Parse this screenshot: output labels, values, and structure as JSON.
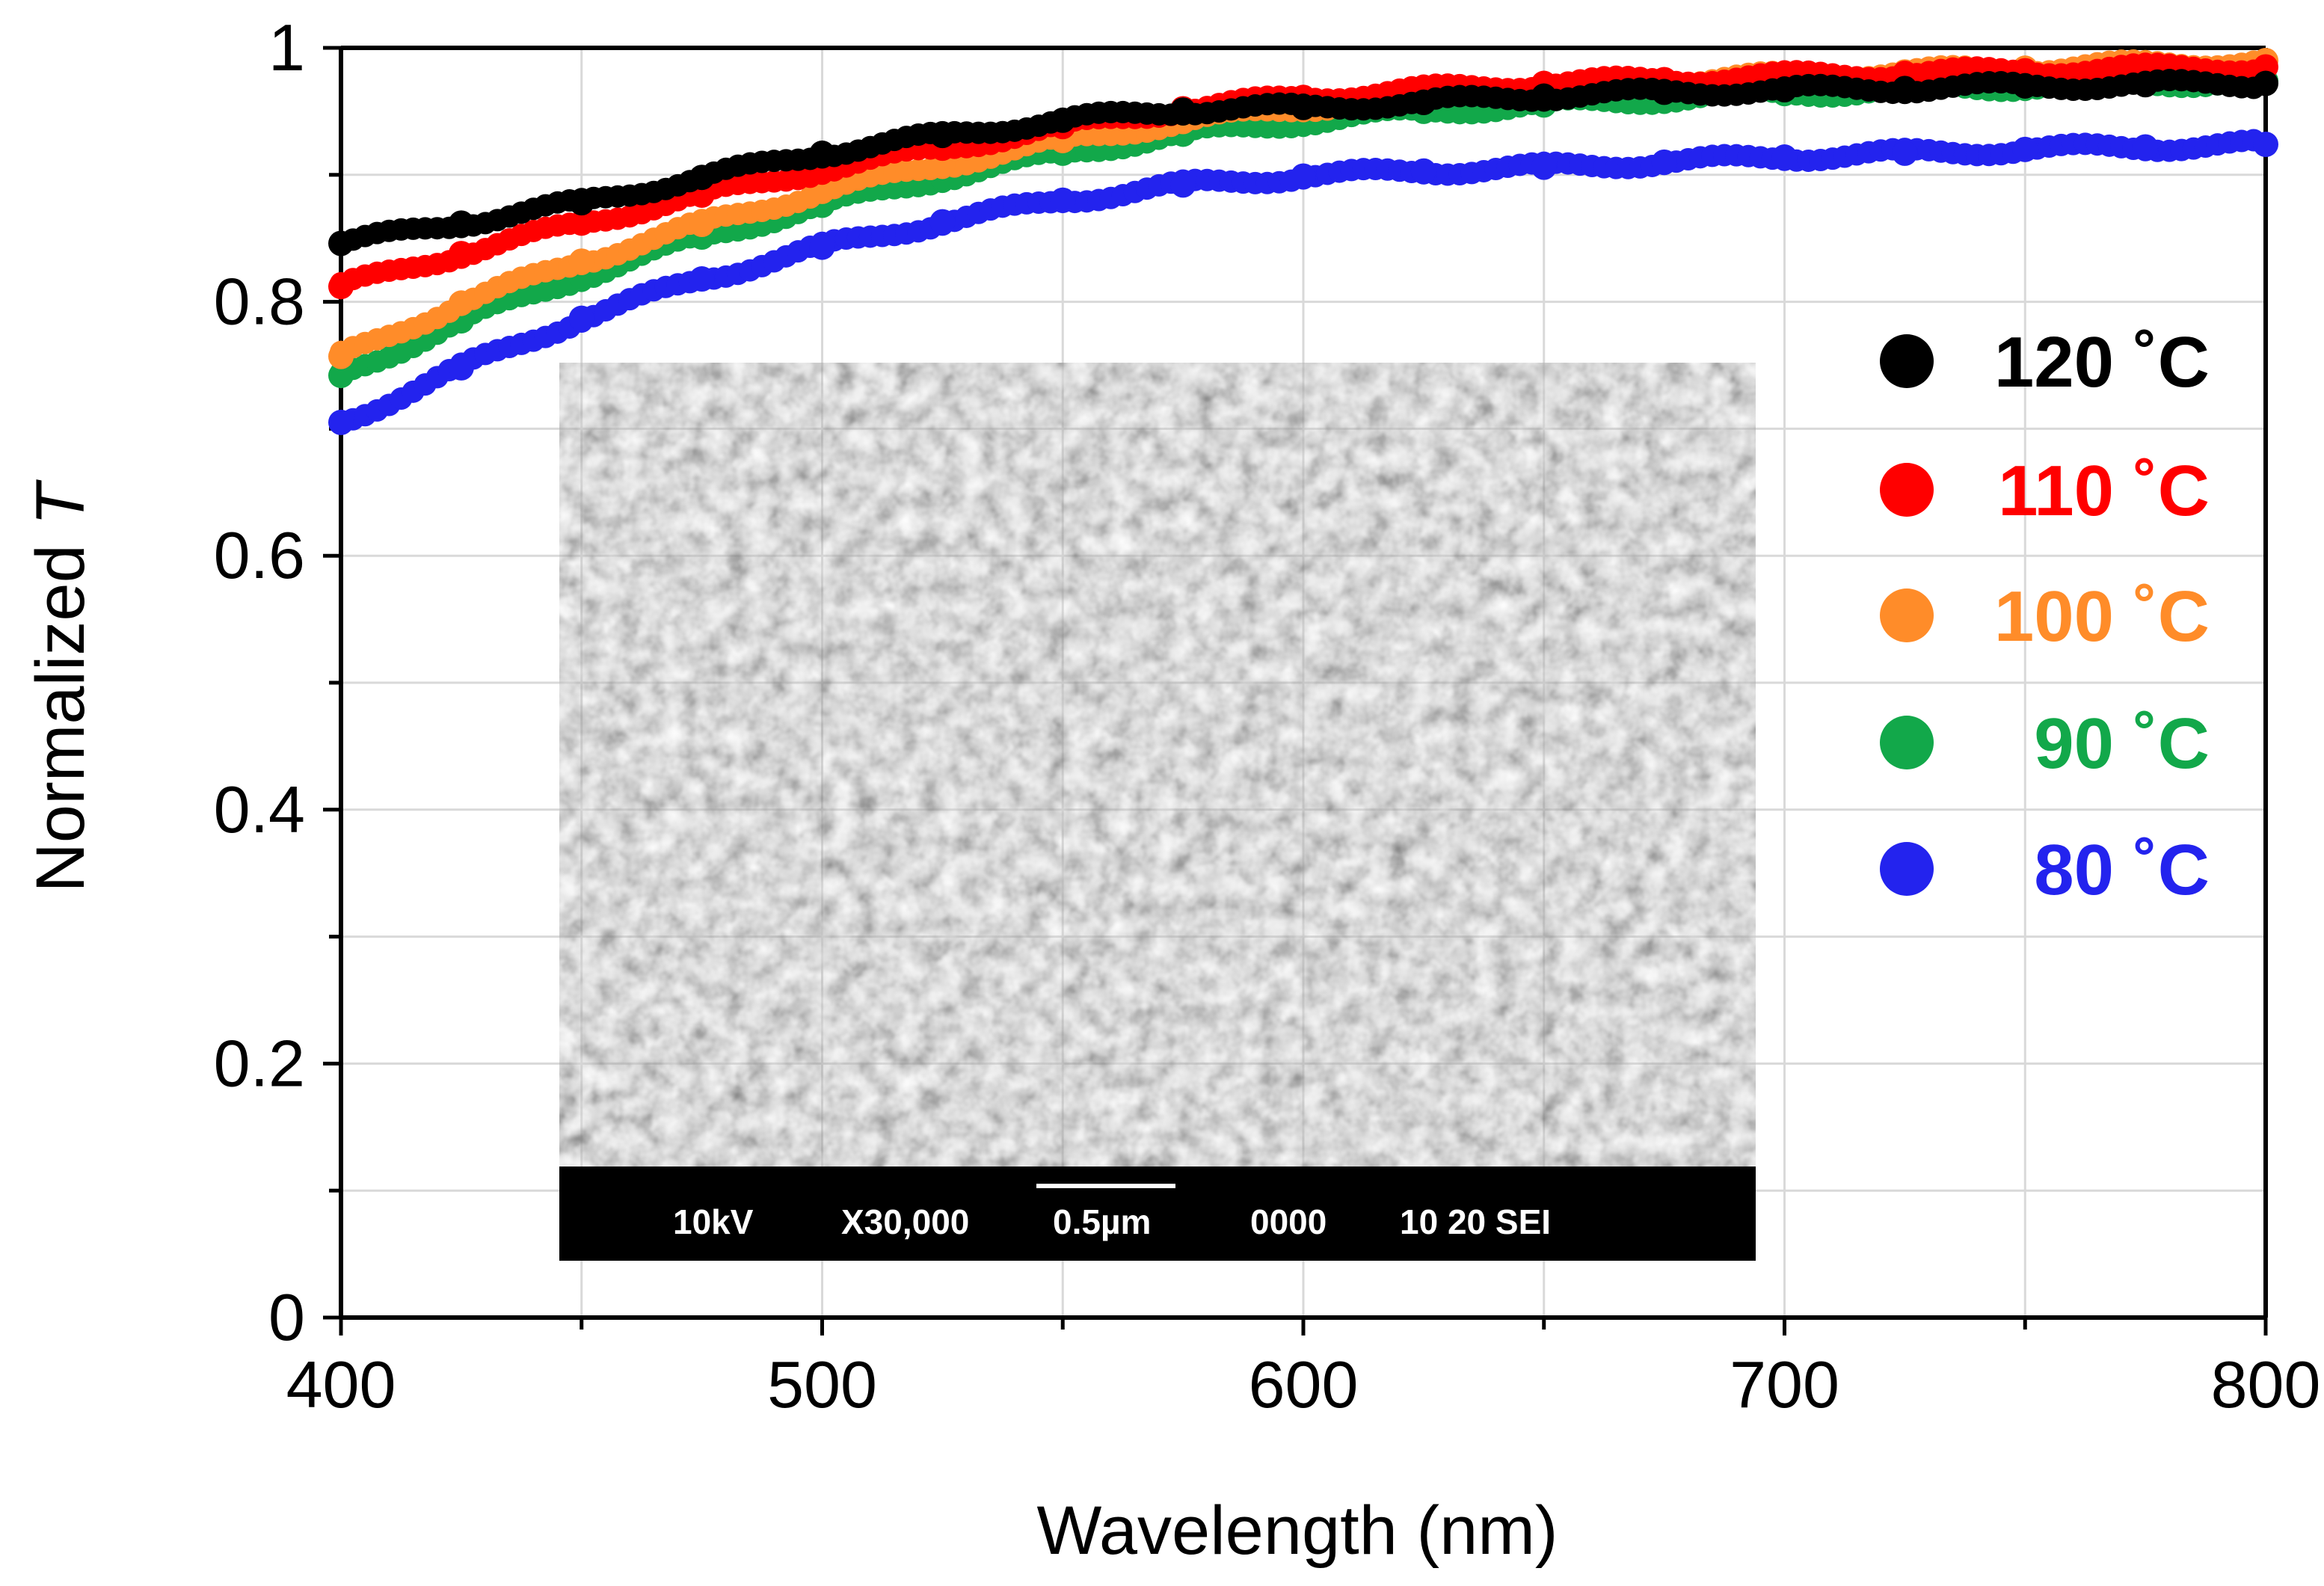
{
  "chart_data": {
    "type": "scatter",
    "title": "",
    "xlabel": "Wavelength (nm)",
    "ylabel_prefix": "Normalized ",
    "ylabel_var": "T",
    "xlim": [
      400,
      800
    ],
    "ylim": [
      0,
      1
    ],
    "xticks": [
      400,
      500,
      600,
      700,
      800
    ],
    "xtick_labels": [
      "400",
      "500",
      "600",
      "700",
      "800"
    ],
    "yticks": [
      0,
      0.2,
      0.4,
      0.6,
      0.8,
      1
    ],
    "ytick_labels": [
      "0",
      "0.2",
      "0.4",
      "0.6",
      "0.8",
      "1"
    ],
    "grid": true,
    "legend_position": "right",
    "series": [
      {
        "name": "120 ˚C",
        "color": "#000000",
        "x": [
          400,
          425,
          450,
          475,
          500,
          525,
          550,
          575,
          600,
          625,
          650,
          675,
          700,
          725,
          750,
          775,
          800
        ],
        "values": [
          0.846,
          0.862,
          0.878,
          0.898,
          0.917,
          0.931,
          0.943,
          0.951,
          0.953,
          0.957,
          0.962,
          0.965,
          0.967,
          0.968,
          0.97,
          0.971,
          0.972
        ]
      },
      {
        "name": "110 ˚C",
        "color": "#ff0000",
        "x": [
          400,
          425,
          450,
          475,
          500,
          525,
          550,
          575,
          600,
          625,
          650,
          675,
          700,
          725,
          750,
          775,
          800
        ],
        "values": [
          0.812,
          0.838,
          0.862,
          0.884,
          0.904,
          0.921,
          0.938,
          0.952,
          0.961,
          0.967,
          0.972,
          0.975,
          0.978,
          0.98,
          0.982,
          0.984,
          0.985
        ]
      },
      {
        "name": "100 ˚C",
        "color": "#ff8c29",
        "x": [
          400,
          425,
          450,
          475,
          500,
          525,
          550,
          575,
          600,
          625,
          650,
          675,
          700,
          725,
          750,
          775,
          800
        ],
        "values": [
          0.757,
          0.799,
          0.832,
          0.861,
          0.887,
          0.908,
          0.927,
          0.942,
          0.953,
          0.962,
          0.969,
          0.974,
          0.978,
          0.981,
          0.984,
          0.987,
          0.99
        ]
      },
      {
        "name": "90 ˚C",
        "color": "#12a84a",
        "x": [
          400,
          425,
          450,
          475,
          500,
          525,
          550,
          575,
          600,
          625,
          650,
          675,
          700,
          725,
          750,
          775,
          800
        ],
        "values": [
          0.742,
          0.785,
          0.82,
          0.851,
          0.876,
          0.898,
          0.917,
          0.932,
          0.942,
          0.95,
          0.955,
          0.96,
          0.964,
          0.967,
          0.97,
          0.972,
          0.974
        ]
      },
      {
        "name": "80 ˚C",
        "color": "#2323ee",
        "x": [
          400,
          425,
          450,
          475,
          500,
          525,
          550,
          575,
          600,
          625,
          650,
          675,
          700,
          725,
          750,
          775,
          800
        ],
        "values": [
          0.705,
          0.748,
          0.787,
          0.818,
          0.843,
          0.863,
          0.88,
          0.892,
          0.899,
          0.903,
          0.906,
          0.91,
          0.914,
          0.917,
          0.92,
          0.922,
          0.924
        ]
      }
    ]
  },
  "inset": {
    "label_kv": "10kV",
    "label_mag": "X30,000",
    "label_scale": "0.5µm",
    "label_num": "0000",
    "label_wd": "10 20 SEI"
  }
}
